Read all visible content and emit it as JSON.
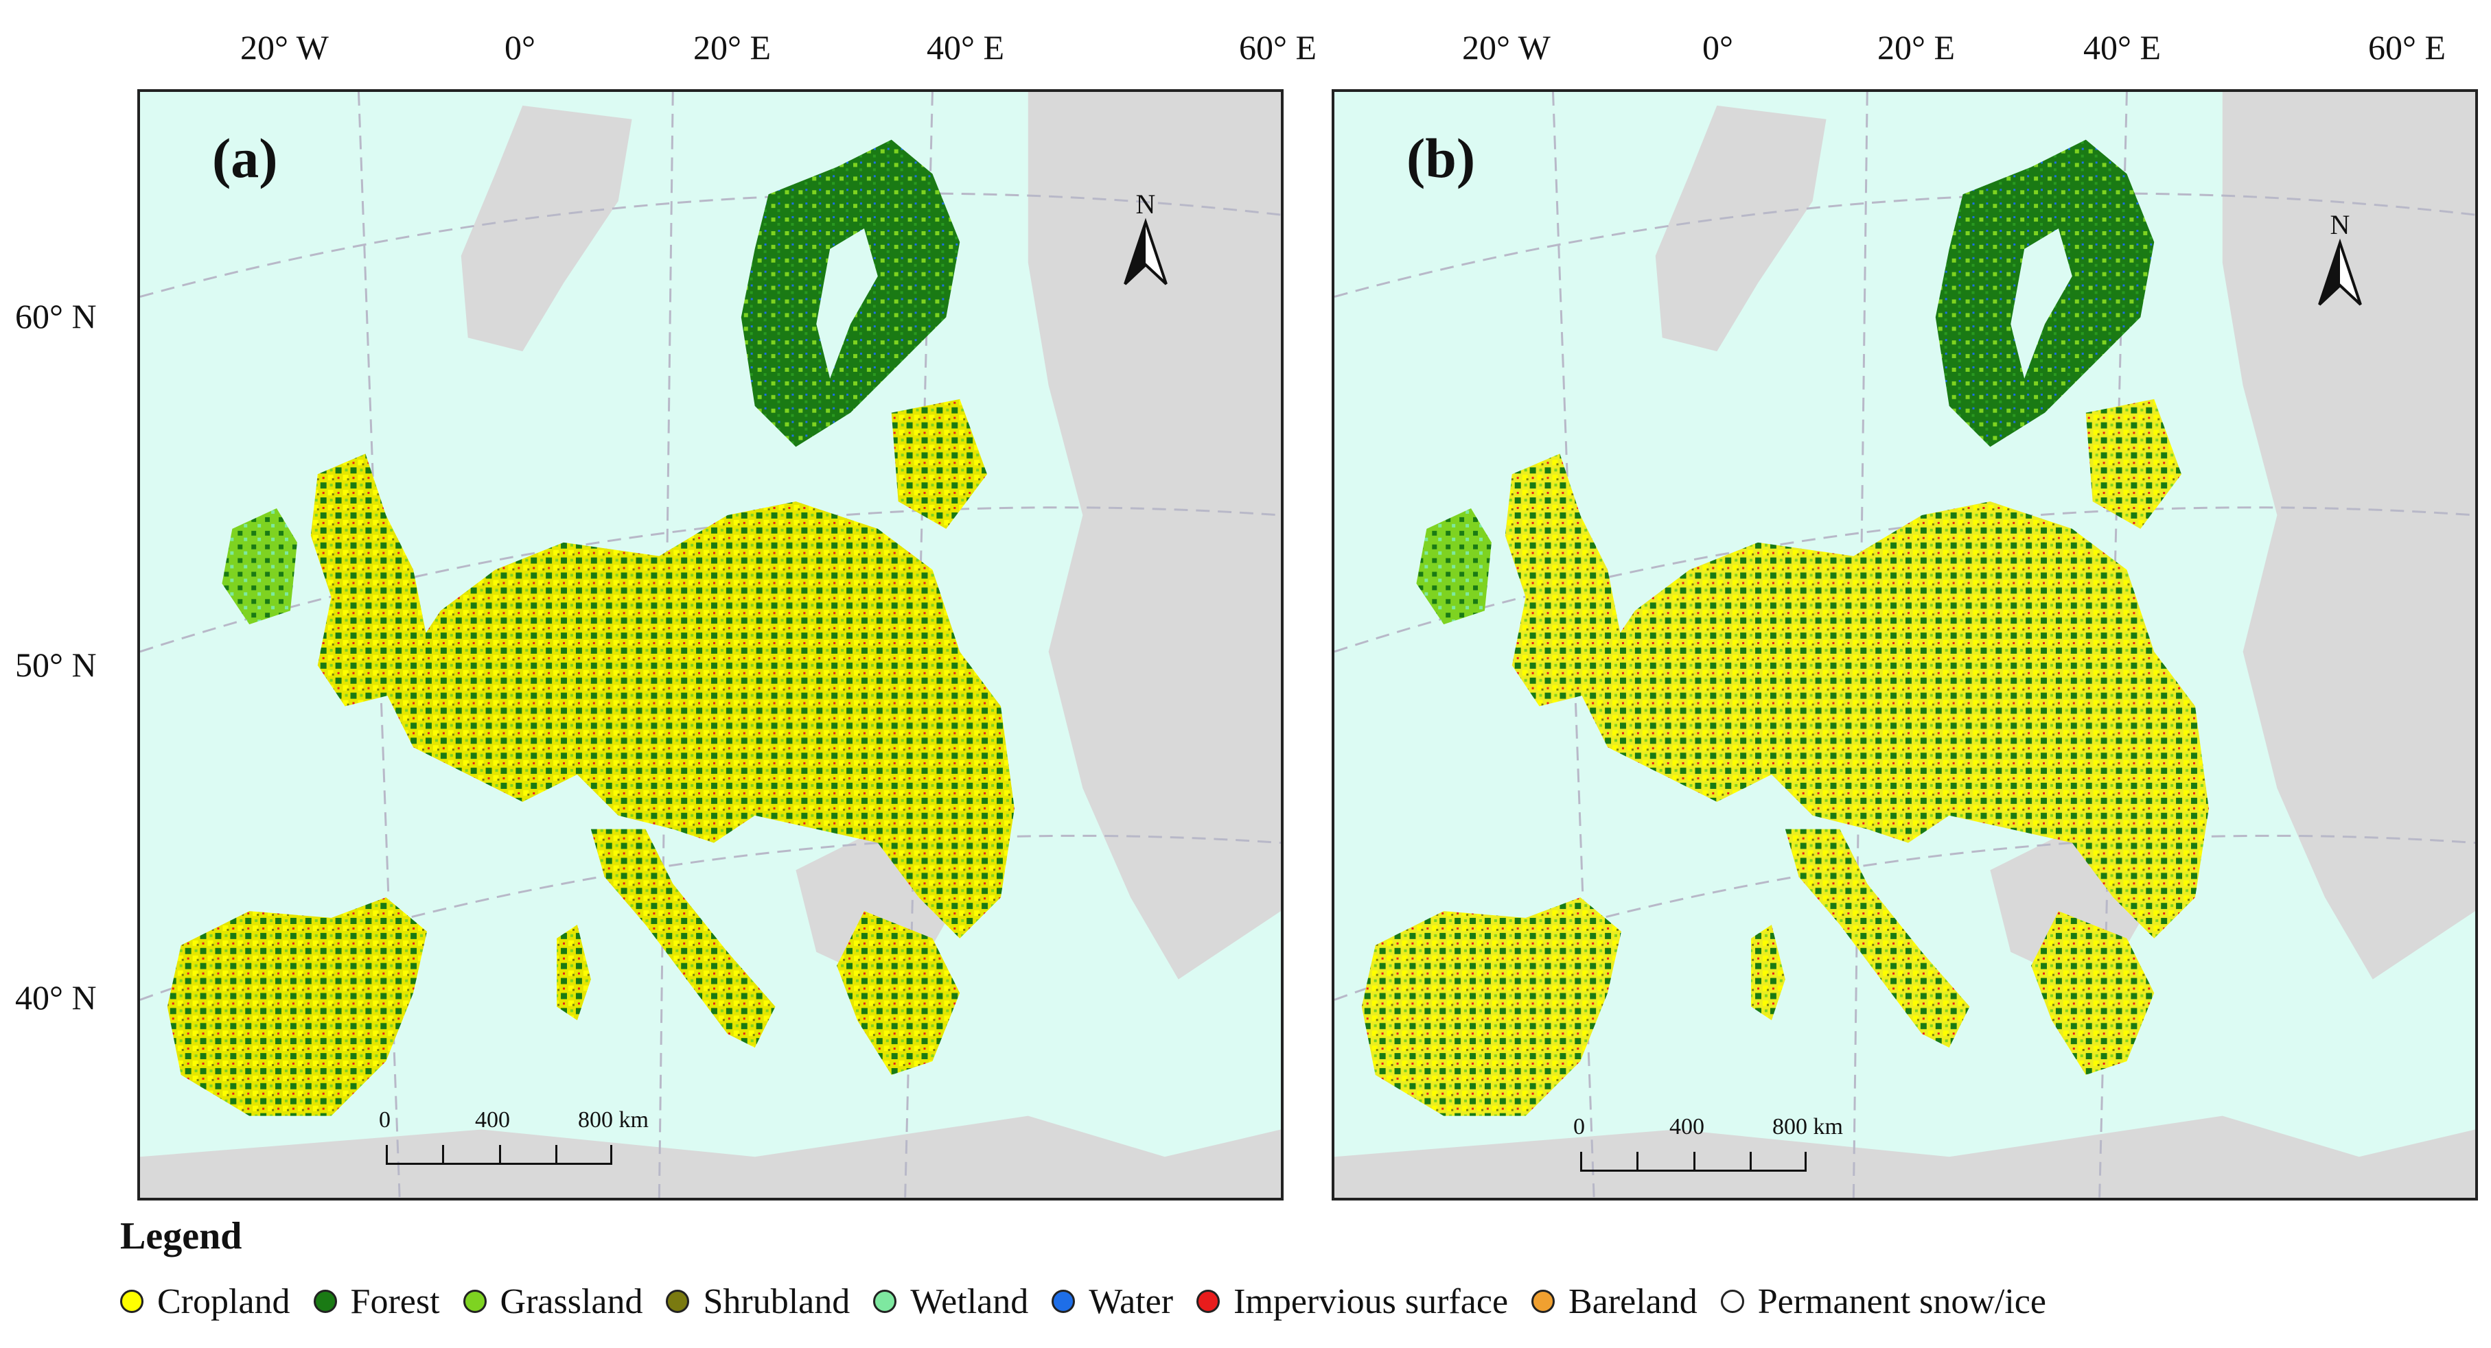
{
  "longitude_labels": [
    "20° W",
    "0°",
    "20° E",
    "40° E",
    "60° E"
  ],
  "latitude_labels": [
    "60° N",
    "50° N",
    "40° N"
  ],
  "panels": [
    {
      "label": "(a)",
      "north_symbol": "N",
      "north_icon": "north-arrow-icon",
      "scale": {
        "ticks": [
          "0",
          "400",
          "800 km"
        ]
      }
    },
    {
      "label": "(b)",
      "north_symbol": "N",
      "north_icon": "north-arrow-icon",
      "scale": {
        "ticks": [
          "0",
          "400",
          "800 km"
        ]
      }
    }
  ],
  "legend": {
    "title": "Legend",
    "items": [
      {
        "label": "Cropland",
        "color": "#ffff00"
      },
      {
        "label": "Forest",
        "color": "#1a7a14"
      },
      {
        "label": "Grassland",
        "color": "#7ed321"
      },
      {
        "label": "Shrubland",
        "color": "#7a7a10"
      },
      {
        "label": "Wetland",
        "color": "#7ee8a0"
      },
      {
        "label": "Water",
        "color": "#1e6ee8"
      },
      {
        "label": "Impervious surface",
        "color": "#e81c1c"
      },
      {
        "label": "Bareland",
        "color": "#f0a030"
      },
      {
        "label": "Permanent snow/ice",
        "color": "#ffffff"
      }
    ]
  },
  "colors": {
    "sea": "#dcfbf3",
    "non_study_land": "#d9d9d9",
    "graticule": "#b8b8c8"
  }
}
